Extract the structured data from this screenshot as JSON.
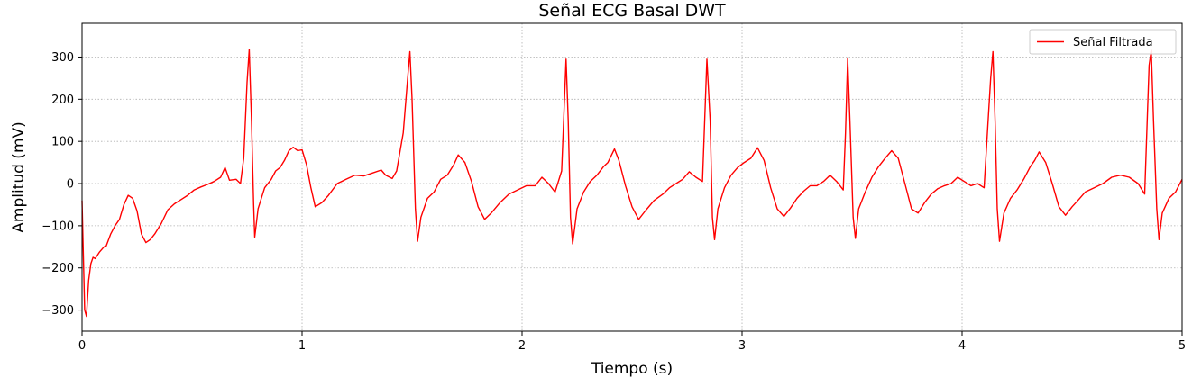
{
  "chart_data": {
    "type": "line",
    "title": "Señal ECG Basal DWT",
    "xlabel": "Tiempo (s)",
    "ylabel": "Amplitud (mV)",
    "xlim": [
      0,
      5
    ],
    "ylim": [
      -350,
      380
    ],
    "x_ticks": [
      0,
      1,
      2,
      3,
      4,
      5
    ],
    "y_ticks": [
      -300,
      -200,
      -100,
      0,
      100,
      200,
      300
    ],
    "grid": true,
    "legend_position": "top-right",
    "series": [
      {
        "name": "Señal Filtrada",
        "color": "#ff0000",
        "points": [
          [
            0.0,
            -40
          ],
          [
            0.012,
            -300
          ],
          [
            0.02,
            -315
          ],
          [
            0.03,
            -230
          ],
          [
            0.04,
            -190
          ],
          [
            0.05,
            -175
          ],
          [
            0.06,
            -178
          ],
          [
            0.08,
            -162
          ],
          [
            0.1,
            -150
          ],
          [
            0.11,
            -148
          ],
          [
            0.13,
            -120
          ],
          [
            0.15,
            -100
          ],
          [
            0.17,
            -85
          ],
          [
            0.19,
            -50
          ],
          [
            0.21,
            -28
          ],
          [
            0.23,
            -35
          ],
          [
            0.25,
            -65
          ],
          [
            0.27,
            -120
          ],
          [
            0.29,
            -140
          ],
          [
            0.31,
            -133
          ],
          [
            0.33,
            -120
          ],
          [
            0.36,
            -95
          ],
          [
            0.39,
            -62
          ],
          [
            0.42,
            -48
          ],
          [
            0.45,
            -38
          ],
          [
            0.48,
            -28
          ],
          [
            0.51,
            -15
          ],
          [
            0.54,
            -8
          ],
          [
            0.57,
            -2
          ],
          [
            0.6,
            5
          ],
          [
            0.63,
            15
          ],
          [
            0.65,
            38
          ],
          [
            0.67,
            8
          ],
          [
            0.7,
            10
          ],
          [
            0.72,
            0
          ],
          [
            0.735,
            60
          ],
          [
            0.75,
            240
          ],
          [
            0.76,
            318
          ],
          [
            0.77,
            150
          ],
          [
            0.78,
            -50
          ],
          [
            0.785,
            -127
          ],
          [
            0.8,
            -60
          ],
          [
            0.83,
            -10
          ],
          [
            0.86,
            10
          ],
          [
            0.88,
            30
          ],
          [
            0.9,
            38
          ],
          [
            0.92,
            55
          ],
          [
            0.94,
            78
          ],
          [
            0.96,
            86
          ],
          [
            0.98,
            78
          ],
          [
            1.0,
            80
          ],
          [
            1.02,
            45
          ],
          [
            1.04,
            -10
          ],
          [
            1.06,
            -55
          ],
          [
            1.09,
            -45
          ],
          [
            1.12,
            -28
          ],
          [
            1.16,
            0
          ],
          [
            1.2,
            10
          ],
          [
            1.24,
            20
          ],
          [
            1.28,
            18
          ],
          [
            1.32,
            25
          ],
          [
            1.36,
            32
          ],
          [
            1.38,
            20
          ],
          [
            1.41,
            12
          ],
          [
            1.43,
            30
          ],
          [
            1.46,
            120
          ],
          [
            1.48,
            250
          ],
          [
            1.49,
            313
          ],
          [
            1.5,
            200
          ],
          [
            1.515,
            -60
          ],
          [
            1.525,
            -137
          ],
          [
            1.54,
            -80
          ],
          [
            1.57,
            -35
          ],
          [
            1.6,
            -20
          ],
          [
            1.63,
            10
          ],
          [
            1.66,
            20
          ],
          [
            1.69,
            45
          ],
          [
            1.71,
            68
          ],
          [
            1.74,
            50
          ],
          [
            1.77,
            5
          ],
          [
            1.8,
            -55
          ],
          [
            1.83,
            -85
          ],
          [
            1.86,
            -70
          ],
          [
            1.9,
            -45
          ],
          [
            1.94,
            -25
          ],
          [
            1.98,
            -15
          ],
          [
            2.02,
            -5
          ],
          [
            2.06,
            -5
          ],
          [
            2.09,
            15
          ],
          [
            2.12,
            0
          ],
          [
            2.15,
            -20
          ],
          [
            2.18,
            30
          ],
          [
            2.2,
            295
          ],
          [
            2.21,
            150
          ],
          [
            2.22,
            -80
          ],
          [
            2.23,
            -143
          ],
          [
            2.25,
            -60
          ],
          [
            2.28,
            -20
          ],
          [
            2.31,
            5
          ],
          [
            2.34,
            20
          ],
          [
            2.37,
            40
          ],
          [
            2.39,
            50
          ],
          [
            2.42,
            82
          ],
          [
            2.44,
            55
          ],
          [
            2.47,
            -5
          ],
          [
            2.5,
            -55
          ],
          [
            2.53,
            -85
          ],
          [
            2.56,
            -65
          ],
          [
            2.6,
            -40
          ],
          [
            2.64,
            -25
          ],
          [
            2.67,
            -10
          ],
          [
            2.7,
            0
          ],
          [
            2.73,
            10
          ],
          [
            2.76,
            28
          ],
          [
            2.79,
            15
          ],
          [
            2.82,
            5
          ],
          [
            2.84,
            295
          ],
          [
            2.855,
            150
          ],
          [
            2.865,
            -80
          ],
          [
            2.875,
            -133
          ],
          [
            2.89,
            -60
          ],
          [
            2.92,
            -10
          ],
          [
            2.95,
            20
          ],
          [
            2.98,
            38
          ],
          [
            3.01,
            50
          ],
          [
            3.04,
            60
          ],
          [
            3.07,
            85
          ],
          [
            3.1,
            55
          ],
          [
            3.13,
            -10
          ],
          [
            3.16,
            -60
          ],
          [
            3.19,
            -78
          ],
          [
            3.22,
            -58
          ],
          [
            3.25,
            -35
          ],
          [
            3.28,
            -18
          ],
          [
            3.31,
            -5
          ],
          [
            3.34,
            -5
          ],
          [
            3.37,
            5
          ],
          [
            3.4,
            20
          ],
          [
            3.43,
            5
          ],
          [
            3.46,
            -15
          ],
          [
            3.47,
            120
          ],
          [
            3.48,
            297
          ],
          [
            3.49,
            150
          ],
          [
            3.505,
            -80
          ],
          [
            3.515,
            -130
          ],
          [
            3.53,
            -60
          ],
          [
            3.56,
            -20
          ],
          [
            3.59,
            15
          ],
          [
            3.62,
            40
          ],
          [
            3.65,
            60
          ],
          [
            3.68,
            78
          ],
          [
            3.71,
            60
          ],
          [
            3.74,
            0
          ],
          [
            3.77,
            -60
          ],
          [
            3.8,
            -70
          ],
          [
            3.83,
            -45
          ],
          [
            3.86,
            -25
          ],
          [
            3.89,
            -12
          ],
          [
            3.92,
            -5
          ],
          [
            3.95,
            0
          ],
          [
            3.98,
            15
          ],
          [
            4.01,
            5
          ],
          [
            4.04,
            -5
          ],
          [
            4.07,
            0
          ],
          [
            4.1,
            -10
          ],
          [
            4.13,
            250
          ],
          [
            4.14,
            313
          ],
          [
            4.15,
            150
          ],
          [
            4.16,
            -60
          ],
          [
            4.17,
            -137
          ],
          [
            4.19,
            -70
          ],
          [
            4.22,
            -35
          ],
          [
            4.25,
            -15
          ],
          [
            4.28,
            10
          ],
          [
            4.31,
            40
          ],
          [
            4.33,
            55
          ],
          [
            4.35,
            75
          ],
          [
            4.38,
            50
          ],
          [
            4.41,
            0
          ],
          [
            4.44,
            -55
          ],
          [
            4.47,
            -75
          ],
          [
            4.5,
            -55
          ],
          [
            4.53,
            -38
          ],
          [
            4.56,
            -20
          ],
          [
            4.6,
            -10
          ],
          [
            4.64,
            0
          ],
          [
            4.68,
            15
          ],
          [
            4.72,
            20
          ],
          [
            4.76,
            15
          ],
          [
            4.8,
            0
          ],
          [
            4.83,
            -25
          ],
          [
            4.85,
            280
          ],
          [
            4.86,
            316
          ],
          [
            4.87,
            150
          ],
          [
            4.885,
            -60
          ],
          [
            4.895,
            -133
          ],
          [
            4.91,
            -70
          ],
          [
            4.94,
            -35
          ],
          [
            4.97,
            -20
          ],
          [
            5.0,
            10
          ]
        ]
      }
    ]
  }
}
